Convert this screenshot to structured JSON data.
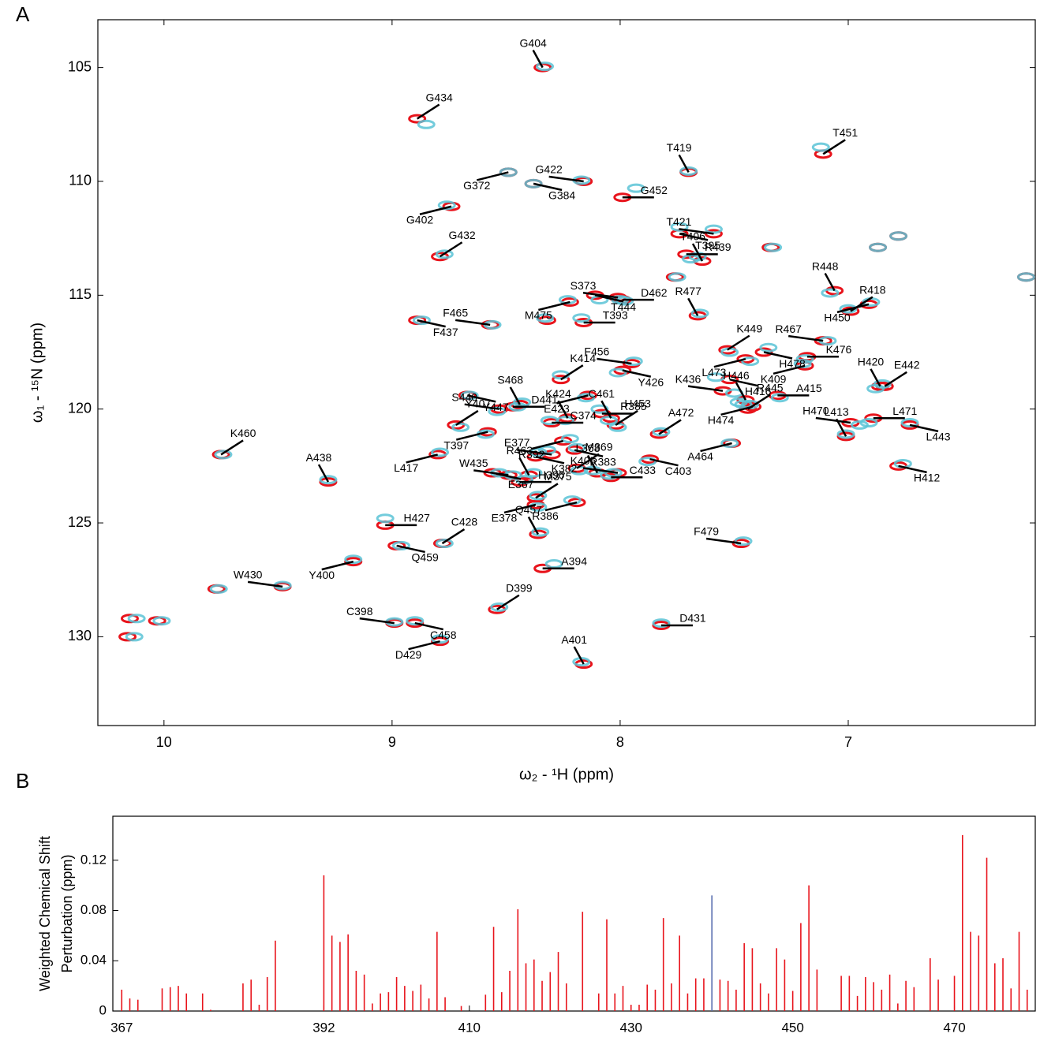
{
  "chart_data": [
    {
      "type": "scatter",
      "panel_label": "A",
      "xlabel": "ω₂ - ¹H  (ppm)",
      "ylabel": "ω₁ - ¹⁵N  (ppm)",
      "xlim": [
        6.18,
        10.29
      ],
      "ylim": [
        102.9,
        133.9
      ],
      "x_reversed": true,
      "y_reversed": true,
      "xticks": [
        10,
        9,
        8,
        7
      ],
      "yticks": [
        105,
        110,
        115,
        120,
        125,
        130
      ],
      "series": [
        {
          "color": "#e8141c",
          "labels": [
            "G404",
            "G434",
            "G372",
            "G384",
            "G422",
            "G452",
            "T419",
            "T451",
            "G402",
            "T395",
            "T421",
            "R439",
            "T406",
            "G432",
            "M475",
            "T444",
            "S373",
            "D462",
            "R448",
            "R418",
            "H450",
            "F437",
            "F465",
            "T393",
            "R477",
            "K449",
            "L473",
            "H478",
            "R467",
            "K476",
            "H420",
            "E442",
            "K409",
            "H416",
            "K436",
            "A415",
            "H446",
            "R445",
            "H474",
            "L443",
            "H470",
            "L471",
            "L413",
            "A472",
            "A464",
            "C403",
            "K405",
            "C433",
            "L368",
            "M369",
            "R386",
            "H412",
            "F479",
            "D431",
            "A401",
            "D399",
            "D429",
            "C458",
            "C398",
            "A394",
            "Q457",
            "C428",
            "Y400",
            "Q459",
            "W430",
            "H427",
            "A438",
            "K460",
            "L417",
            "E367",
            "W435",
            "H396",
            "R463",
            "M375",
            "E378",
            "K382",
            "E377",
            "C374",
            "K424",
            "Y407",
            "T397",
            "Y447",
            "S440",
            "D441",
            "S468",
            "K414",
            "E423",
            "Y426",
            "F456",
            "R385",
            "C461",
            "H453",
            "R392",
            "R383",
            null,
            null,
            null,
            null,
            null,
            null,
            null,
            null,
            null,
            null
          ],
          "x": [
            8.34,
            8.89,
            8.49,
            8.38,
            8.16,
            7.99,
            7.7,
            7.11,
            8.74,
            7.74,
            7.59,
            7.71,
            7.64,
            8.79,
            8.22,
            8.11,
            8.01,
            7.99,
            7.06,
            6.99,
            6.91,
            8.89,
            8.57,
            8.16,
            7.66,
            7.53,
            7.45,
            7.37,
            7.11,
            7.18,
            6.86,
            6.84,
            7.19,
            7.52,
            7.55,
            7.31,
            7.45,
            7.44,
            7.42,
            6.73,
            6.99,
            6.89,
            7.01,
            7.83,
            7.51,
            7.87,
            8.01,
            8.04,
            8.1,
            8.19,
            8.19,
            6.78,
            7.47,
            7.82,
            8.16,
            8.54,
            8.79,
            8.9,
            8.99,
            8.34,
            8.36,
            8.78,
            9.17,
            8.98,
            9.48,
            9.03,
            9.28,
            9.75,
            8.8,
            8.56,
            8.49,
            8.44,
            8.4,
            8.37,
            8.37,
            8.37,
            8.3,
            8.3,
            8.23,
            8.72,
            8.58,
            8.67,
            8.53,
            8.47,
            8.44,
            8.26,
            8.14,
            7.99,
            7.95,
            8.08,
            8.04,
            8.02,
            8.25,
            8.2,
            10.15,
            10.03,
            10.16,
            9.77,
            6.22,
            7.34,
            6.87,
            6.78,
            7.76,
            8.32
          ],
          "y": [
            105.0,
            107.25,
            109.6,
            110.1,
            110.0,
            110.7,
            109.6,
            108.8,
            111.1,
            112.3,
            112.3,
            113.2,
            113.5,
            113.3,
            115.3,
            115.0,
            115.1,
            115.2,
            114.8,
            115.7,
            115.4,
            116.1,
            116.3,
            116.2,
            115.9,
            117.4,
            117.8,
            117.5,
            117.0,
            117.7,
            119.0,
            119.0,
            118.1,
            118.7,
            119.2,
            119.4,
            119.6,
            120.0,
            119.9,
            120.7,
            120.6,
            120.4,
            121.2,
            121.1,
            121.5,
            122.2,
            122.8,
            123.0,
            122.8,
            122.6,
            124.1,
            122.5,
            125.9,
            129.5,
            131.2,
            128.8,
            130.2,
            129.4,
            129.4,
            127.0,
            125.5,
            125.9,
            126.7,
            126.0,
            127.8,
            125.1,
            123.2,
            122.0,
            122.0,
            122.8,
            122.9,
            123.2,
            122.9,
            123.9,
            124.2,
            122.1,
            122.0,
            120.6,
            120.4,
            120.7,
            121.0,
            119.4,
            120.0,
            119.9,
            119.8,
            118.7,
            119.4,
            118.3,
            118.0,
            120.2,
            120.4,
            120.7,
            121.4,
            121.8,
            129.2,
            129.3,
            130.0,
            127.9,
            114.2,
            112.9,
            112.9,
            112.4,
            114.2,
            116.1
          ]
        },
        {
          "color": "#5bc3d6",
          "x": [
            8.33,
            8.85,
            8.49,
            8.38,
            8.17,
            7.93,
            7.7,
            7.12,
            8.76,
            7.74,
            7.59,
            7.69,
            7.66,
            8.77,
            8.23,
            8.09,
            8.0,
            7.98,
            7.08,
            7.0,
            6.9,
            8.87,
            8.56,
            8.17,
            7.65,
            7.52,
            7.43,
            7.35,
            7.09,
            7.19,
            6.88,
            6.85,
            7.2,
            7.58,
            7.5,
            7.3,
            7.48,
            7.46,
            7.43,
            6.73,
            6.95,
            6.91,
            7.01,
            7.82,
            7.52,
            7.88,
            8.03,
            8.05,
            8.12,
            8.18,
            8.21,
            6.76,
            7.46,
            7.82,
            8.17,
            8.53,
            8.79,
            8.9,
            8.99,
            8.29,
            8.35,
            8.77,
            9.17,
            8.96,
            9.48,
            9.03,
            9.28,
            9.74,
            8.79,
            8.53,
            8.47,
            8.42,
            8.38,
            8.36,
            8.36,
            8.36,
            8.32,
            8.31,
            8.24,
            8.7,
            8.59,
            8.66,
            8.54,
            8.45,
            8.43,
            8.26,
            8.15,
            8.01,
            7.94,
            8.09,
            8.05,
            8.01,
            8.22,
            8.19,
            10.12,
            10.01,
            10.13,
            9.76,
            6.22,
            7.33,
            6.87,
            6.78,
            7.75,
            8.33
          ],
          "y": [
            104.95,
            107.5,
            109.6,
            110.1,
            109.95,
            110.3,
            109.55,
            108.5,
            111.05,
            112.0,
            112.1,
            113.4,
            113.3,
            113.2,
            115.2,
            115.2,
            115.2,
            115.25,
            114.9,
            115.6,
            115.3,
            116.1,
            116.3,
            116.0,
            115.8,
            117.5,
            117.9,
            117.3,
            117.0,
            117.8,
            119.1,
            118.9,
            118.0,
            118.6,
            119.3,
            119.5,
            119.7,
            119.8,
            119.8,
            120.6,
            120.7,
            120.6,
            121.1,
            121.0,
            121.5,
            122.3,
            122.8,
            122.9,
            122.7,
            122.7,
            124.0,
            122.4,
            125.8,
            129.4,
            131.1,
            128.7,
            130.1,
            129.3,
            129.35,
            126.8,
            125.4,
            125.9,
            126.6,
            126.0,
            127.75,
            124.8,
            123.1,
            122.0,
            121.9,
            122.8,
            122.9,
            123.1,
            122.8,
            123.8,
            124.3,
            121.9,
            121.8,
            120.5,
            120.5,
            120.8,
            121.1,
            119.4,
            120.1,
            119.9,
            119.7,
            118.5,
            119.5,
            118.4,
            117.9,
            120.0,
            120.5,
            120.8,
            121.3,
            121.7,
            129.2,
            129.3,
            130.0,
            127.9,
            114.2,
            112.9,
            112.9,
            112.4,
            114.2,
            116.0
          ]
        }
      ]
    },
    {
      "type": "bar",
      "panel_label": "B",
      "ylabel": [
        "Weighted Chemical Shift",
        "Perturbation (ppm)"
      ],
      "xlim": [
        365.9,
        480
      ],
      "ylim": [
        0,
        0.155
      ],
      "xticks": [
        367,
        392,
        410,
        430,
        450,
        470
      ],
      "yticks": [
        0,
        0.04,
        0.08,
        0.12
      ],
      "series": [
        {
          "color": "#e8141c",
          "x": [
            367,
            368,
            369,
            372,
            373,
            374,
            375,
            377,
            378,
            382,
            383,
            384,
            385,
            386,
            392,
            393,
            394,
            395,
            396,
            397,
            398,
            399,
            400,
            401,
            402,
            403,
            404,
            405,
            406,
            407,
            409,
            412,
            413,
            414,
            415,
            416,
            417,
            418,
            419,
            420,
            421,
            422,
            424,
            426,
            427,
            428,
            429,
            430,
            431,
            432,
            433,
            434,
            435,
            436,
            437,
            438,
            439,
            441,
            442,
            443,
            444,
            445,
            446,
            447,
            448,
            449,
            450,
            451,
            452,
            453,
            456,
            457,
            458,
            459,
            460,
            461,
            462,
            463,
            464,
            465,
            467,
            468,
            470,
            471,
            472,
            473,
            474,
            475,
            476,
            477,
            478,
            479
          ],
          "values": [
            0.017,
            0.01,
            0.009,
            0.018,
            0.019,
            0.02,
            0.014,
            0.014,
            0.001,
            0.022,
            0.025,
            0.005,
            0.027,
            0.056,
            0.108,
            0.06,
            0.055,
            0.061,
            0.032,
            0.029,
            0.006,
            0.014,
            0.015,
            0.027,
            0.02,
            0.016,
            0.021,
            0.01,
            0.063,
            0.011,
            0.004,
            0.013,
            0.067,
            0.015,
            0.032,
            0.081,
            0.038,
            0.041,
            0.024,
            0.031,
            0.047,
            0.022,
            0.079,
            0.014,
            0.073,
            0.014,
            0.02,
            0.005,
            0.005,
            0.021,
            0.017,
            0.074,
            0.022,
            0.06,
            0.014,
            0.026,
            0.026,
            0.025,
            0.024,
            0.017,
            0.054,
            0.05,
            0.022,
            0.014,
            0.05,
            0.041,
            0.016,
            0.07,
            0.1,
            0.033,
            0.028,
            0.028,
            0.012,
            0.027,
            0.023,
            0.017,
            0.029,
            0.006,
            0.024,
            0.019,
            0.042,
            0.025,
            0.028,
            0.14,
            0.063,
            0.06,
            0.122,
            0.038,
            0.042,
            0.018,
            0.063,
            0.017
          ]
        },
        {
          "color": "#5a6fb0",
          "x": [
            440
          ],
          "values": [
            0.092
          ]
        }
      ]
    }
  ]
}
